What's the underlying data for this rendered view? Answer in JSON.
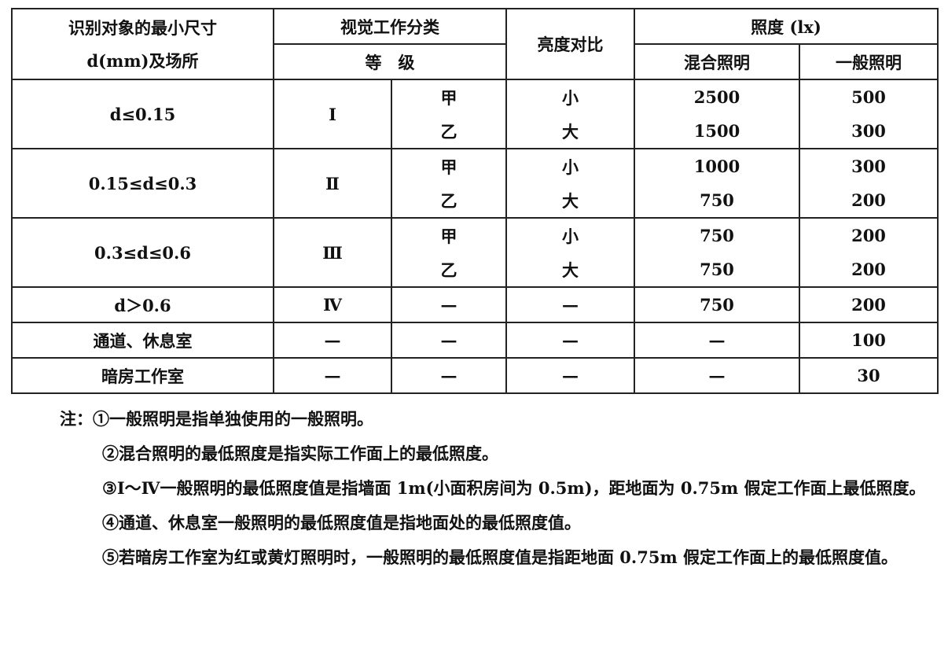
{
  "header": {
    "col1_line1": "识别对象的最小尺寸",
    "col1_line2": "d(mm)及场所",
    "visual": "视觉工作分类",
    "grade": "等　级",
    "contrast": "亮度对比",
    "illum": "照度 (lx)",
    "mixed": "混合照明",
    "general": "一般照明"
  },
  "groups": [
    {
      "size": "d≤0.15",
      "grade": "Ⅰ",
      "rows": [
        {
          "sub": "甲",
          "contrast": "小",
          "mixed": "2500",
          "general": "500"
        },
        {
          "sub": "乙",
          "contrast": "大",
          "mixed": "1500",
          "general": "300"
        }
      ]
    },
    {
      "size": "0.15≤d≤0.3",
      "grade": "Ⅱ",
      "rows": [
        {
          "sub": "甲",
          "contrast": "小",
          "mixed": "1000",
          "general": "300"
        },
        {
          "sub": "乙",
          "contrast": "大",
          "mixed": "750",
          "general": "200"
        }
      ]
    },
    {
      "size": "0.3≤d≤0.6",
      "grade": "Ⅲ",
      "rows": [
        {
          "sub": "甲",
          "contrast": "小",
          "mixed": "750",
          "general": "200"
        },
        {
          "sub": "乙",
          "contrast": "大",
          "mixed": "750",
          "general": "200"
        }
      ]
    }
  ],
  "singles": [
    {
      "size": "d＞0.6",
      "grade": "Ⅳ",
      "sub": "—",
      "contrast": "—",
      "mixed": "750",
      "general": "200"
    },
    {
      "size": "通道、休息室",
      "grade": "—",
      "sub": "—",
      "contrast": "—",
      "mixed": "—",
      "general": "100"
    },
    {
      "size": "暗房工作室",
      "grade": "—",
      "sub": "—",
      "contrast": "—",
      "mixed": "—",
      "general": "30"
    }
  ],
  "notes": [
    "注：①一般照明是指单独使用的一般照明。",
    "②混合照明的最低照度是指实际工作面上的最低照度。",
    "③Ⅰ～Ⅳ一般照明的最低照度值是指墙面 1m(小面积房间为 0.5m)，距地面为 0.75m 假定工作面上最低照度。",
    "④通道、休息室一般照明的最低照度值是指地面处的最低照度值。",
    "⑤若暗房工作室为红或黄灯照明时，一般照明的最低照度值是指距地面 0.75m 假定工作面上的最低照度值。"
  ]
}
